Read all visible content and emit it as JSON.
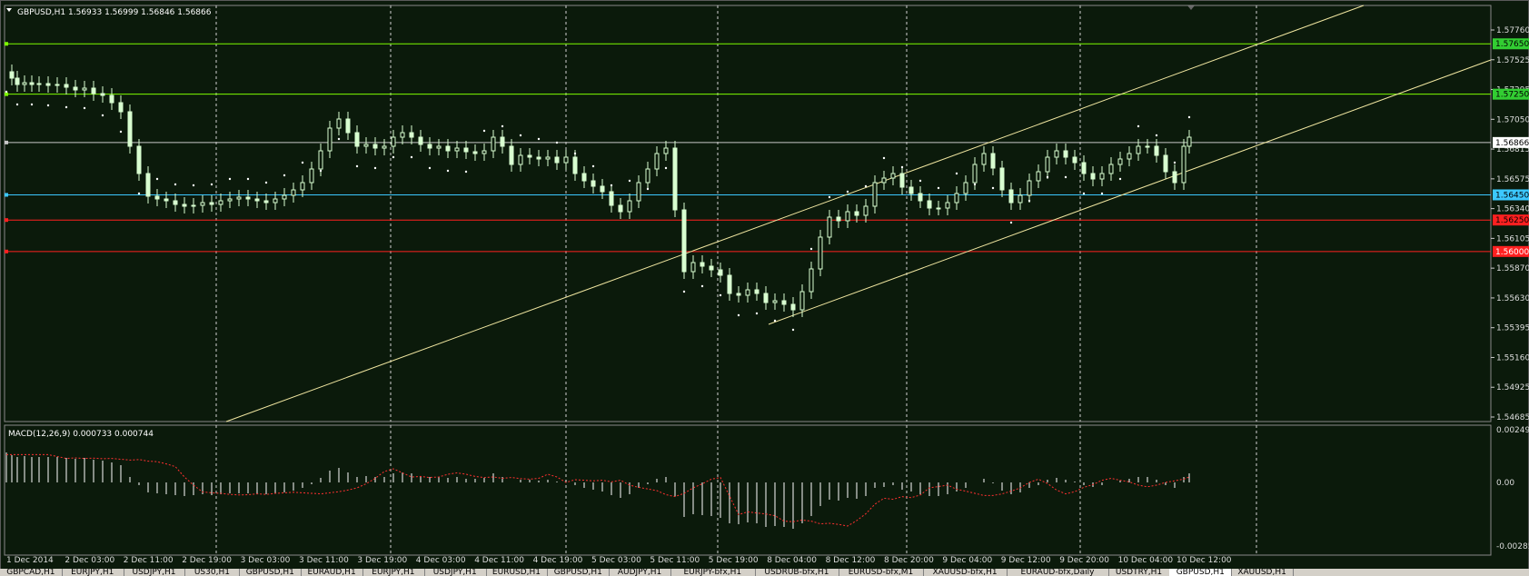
{
  "chart": {
    "symbol_info": "GBPUSD,H1  1.56933 1.56999 1.56846 1.56866",
    "indicator_info": "MACD(12,26,9) 0.000733 0.000744",
    "price_labels": [
      "1.57760",
      "1.57525",
      "1.57295",
      "1.57050",
      "1.56815",
      "1.56575",
      "1.56340",
      "1.56105",
      "1.55870",
      "1.55630",
      "1.55395",
      "1.55160",
      "1.54925",
      "1.54685"
    ],
    "macd_labels": [
      "0.002492",
      "0.00",
      "-0.00285"
    ],
    "time_labels": [
      "1 Dec 2014",
      "2 Dec 03:00",
      "2 Dec 11:00",
      "2 Dec 19:00",
      "3 Dec 03:00",
      "3 Dec 11:00",
      "3 Dec 19:00",
      "4 Dec 03:00",
      "4 Dec 11:00",
      "4 Dec 19:00",
      "5 Dec 03:00",
      "5 Dec 11:00",
      "5 Dec 19:00",
      "8 Dec 04:00",
      "8 Dec 12:00",
      "8 Dec 20:00",
      "9 Dec 04:00",
      "9 Dec 12:00",
      "9 Dec 20:00",
      "10 Dec 04:00",
      "10 Dec 12:00"
    ],
    "horizontal_levels": [
      {
        "label": "1.57650",
        "color": "#7cfc00",
        "bg": "#32cd32",
        "fg": "#000"
      },
      {
        "label": "1.57250",
        "color": "#7cfc00",
        "bg": "#32cd32",
        "fg": "#000"
      },
      {
        "label": "1.56866",
        "color": "#c8c8c8",
        "bg": "#ffffff",
        "fg": "#000"
      },
      {
        "label": "1.56450",
        "color": "#3cc8ff",
        "bg": "#3cc8ff",
        "fg": "#000"
      },
      {
        "label": "1.56250",
        "color": "#ff2020",
        "bg": "#ff2020",
        "fg": "#000"
      },
      {
        "label": "1.56000",
        "color": "#ff2020",
        "bg": "#ff2020",
        "fg": "#fff"
      }
    ]
  },
  "tabs": [
    "GBPCAD,H1",
    "EURJPY,H1",
    "USDJPY,H1",
    "US30,H1",
    "GBPUSD,H1",
    "EURAUD,H1",
    "EURJPY,H1",
    "USDJPY,H1",
    "EURUSD,H1",
    "GBPUSD,H1",
    "AUDJPY,H1",
    "EURJPY-bfx,H1",
    "USDRUB-bfx,H1",
    "EURUSD-bfx,M1",
    "XAUUSD-bfx,H1",
    "EURAUD-bfx,Daily",
    "USDTRY,H1",
    "GBPUSD,H1",
    "XAUUSD,H1"
  ],
  "active_tab": 17,
  "colors": {
    "background": "#0b1a0b",
    "candle": "#d8ffd0",
    "grid": "#d0d0d0",
    "channel": "#f0e6a0",
    "macd_signal": "#ff3030"
  }
}
